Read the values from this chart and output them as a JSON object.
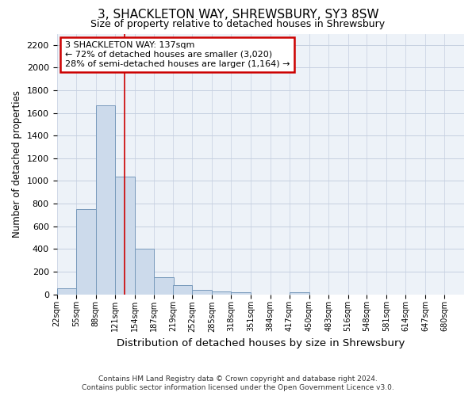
{
  "title": "3, SHACKLETON WAY, SHREWSBURY, SY3 8SW",
  "subtitle": "Size of property relative to detached houses in Shrewsbury",
  "xlabel": "Distribution of detached houses by size in Shrewsbury",
  "ylabel": "Number of detached properties",
  "footer_line1": "Contains HM Land Registry data © Crown copyright and database right 2024.",
  "footer_line2": "Contains public sector information licensed under the Open Government Licence v3.0.",
  "bar_labels": [
    "22sqm",
    "55sqm",
    "88sqm",
    "121sqm",
    "154sqm",
    "187sqm",
    "219sqm",
    "252sqm",
    "285sqm",
    "318sqm",
    "351sqm",
    "384sqm",
    "417sqm",
    "450sqm",
    "483sqm",
    "516sqm",
    "548sqm",
    "581sqm",
    "614sqm",
    "647sqm",
    "680sqm"
  ],
  "bar_values": [
    50,
    750,
    1670,
    1040,
    400,
    150,
    80,
    40,
    25,
    20,
    0,
    0,
    20,
    0,
    0,
    0,
    0,
    0,
    0,
    0,
    0
  ],
  "bar_color": "#ccdaeb",
  "bar_edge_color": "#7799bb",
  "grid_color": "#c5cfe0",
  "bg_color": "#edf2f8",
  "annotation_line1": "3 SHACKLETON WAY: 137sqm",
  "annotation_line2": "← 72% of detached houses are smaller (3,020)",
  "annotation_line3": "28% of semi-detached houses are larger (1,164) →",
  "annotation_box_color": "#ffffff",
  "annotation_box_edge": "#cc0000",
  "vline_x": 137,
  "vline_color": "#cc0000",
  "ylim_max": 2300,
  "yticks": [
    0,
    200,
    400,
    600,
    800,
    1000,
    1200,
    1400,
    1600,
    1800,
    2000,
    2200
  ],
  "bin_width": 33,
  "label_values": [
    22,
    55,
    88,
    121,
    154,
    187,
    219,
    252,
    285,
    318,
    351,
    384,
    417,
    450,
    483,
    516,
    548,
    581,
    614,
    647,
    680
  ]
}
